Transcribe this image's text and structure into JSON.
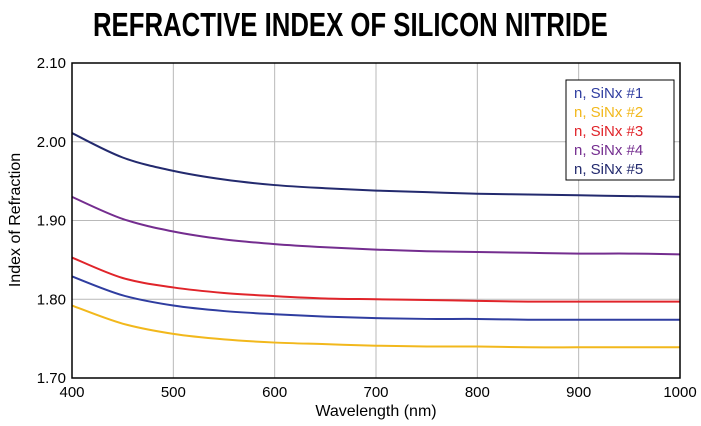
{
  "chart_data": {
    "type": "line",
    "title": "REFRACTIVE INDEX OF SILICON NITRIDE",
    "xlabel": "Wavelength (nm)",
    "ylabel": "Index of Refraction",
    "xlim": [
      400,
      1000
    ],
    "ylim": [
      1.7,
      2.1
    ],
    "xticks": [
      "400",
      "500",
      "600",
      "700",
      "800",
      "900",
      "1000"
    ],
    "yticks": [
      "1.70",
      "1.80",
      "1.90",
      "2.00",
      "2.10"
    ],
    "grid": true,
    "legend_position": "top-right",
    "x": [
      400,
      450,
      500,
      550,
      600,
      650,
      700,
      750,
      800,
      850,
      900,
      950,
      1000
    ],
    "series": [
      {
        "name": "n, SiNx #1",
        "color": "#2f3da0",
        "values": [
          1.829,
          1.805,
          1.792,
          1.785,
          1.781,
          1.778,
          1.776,
          1.775,
          1.775,
          1.774,
          1.774,
          1.774,
          1.774
        ]
      },
      {
        "name": "n, SiNx #2",
        "color": "#f2b81c",
        "values": [
          1.792,
          1.769,
          1.756,
          1.749,
          1.745,
          1.743,
          1.741,
          1.74,
          1.74,
          1.739,
          1.739,
          1.739,
          1.739
        ]
      },
      {
        "name": "n, SiNx #3",
        "color": "#e0242a",
        "values": [
          1.853,
          1.827,
          1.815,
          1.808,
          1.804,
          1.801,
          1.8,
          1.799,
          1.798,
          1.797,
          1.797,
          1.797,
          1.797
        ]
      },
      {
        "name": "n, SiNx #4",
        "color": "#742d8f",
        "values": [
          1.93,
          1.902,
          1.886,
          1.876,
          1.87,
          1.866,
          1.863,
          1.861,
          1.86,
          1.859,
          1.858,
          1.858,
          1.857
        ]
      },
      {
        "name": "n, SiNx #5",
        "color": "#232a6e",
        "values": [
          2.011,
          1.98,
          1.963,
          1.952,
          1.945,
          1.941,
          1.938,
          1.936,
          1.934,
          1.933,
          1.932,
          1.931,
          1.93
        ]
      }
    ]
  }
}
